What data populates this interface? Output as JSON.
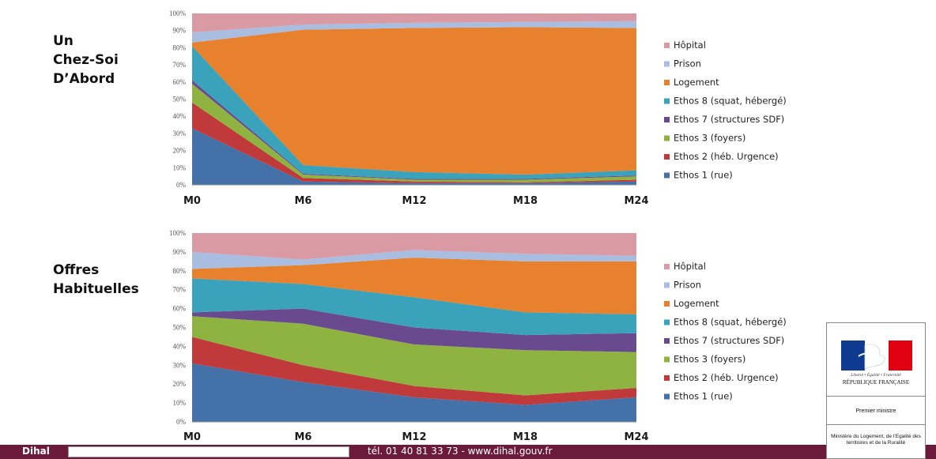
{
  "chart_data": [
    {
      "type": "area",
      "stacked": true,
      "percent": true,
      "title": "Un\nChez-Soi\nD’Abord",
      "categories": [
        "M0",
        "M6",
        "M12",
        "M18",
        "M24"
      ],
      "yticks": [
        "0%",
        "10%",
        "20%",
        "30%",
        "40%",
        "50%",
        "60%",
        "70%",
        "80%",
        "90%",
        "100%"
      ],
      "ylim": [
        0,
        100
      ],
      "legend_position": "right",
      "series": [
        {
          "name": "Ethos 1 (rue)",
          "color": "#4472a8",
          "values": [
            33,
            2,
            1,
            1,
            2
          ]
        },
        {
          "name": "Ethos 2 (héb. Urgence)",
          "color": "#c0393b",
          "values": [
            15,
            2,
            1,
            0.5,
            1
          ]
        },
        {
          "name": "Ethos 3 (foyers)",
          "color": "#8fb341",
          "values": [
            11,
            2,
            1,
            1.5,
            2
          ]
        },
        {
          "name": "Ethos 7 (structures SDF)",
          "color": "#6a4a8f",
          "values": [
            2,
            0.5,
            0.5,
            0.5,
            0.5
          ]
        },
        {
          "name": "Ethos 8 (squat, hébergé)",
          "color": "#3aa2bb",
          "values": [
            20,
            5,
            4,
            2.5,
            3
          ]
        },
        {
          "name": "Logement",
          "color": "#e8812e",
          "values": [
            2,
            79,
            84,
            86,
            83
          ]
        },
        {
          "name": "Prison",
          "color": "#a9bde0",
          "values": [
            6,
            3,
            3,
            3,
            4
          ]
        },
        {
          "name": "Hôpital",
          "color": "#d99aa3",
          "values": [
            11,
            6.5,
            5.5,
            5,
            4.5
          ]
        }
      ]
    },
    {
      "type": "area",
      "stacked": true,
      "percent": true,
      "title": "Offres\nHabituelles",
      "categories": [
        "M0",
        "M6",
        "M12",
        "M18",
        "M24"
      ],
      "yticks": [
        "0%",
        "10%",
        "20%",
        "30%",
        "40%",
        "50%",
        "60%",
        "70%",
        "80%",
        "90%",
        "100%"
      ],
      "ylim": [
        0,
        100
      ],
      "legend_position": "right",
      "series": [
        {
          "name": "Ethos 1 (rue)",
          "color": "#4472a8",
          "values": [
            31,
            21,
            13,
            9,
            13
          ]
        },
        {
          "name": "Ethos 2 (héb. Urgence)",
          "color": "#c0393b",
          "values": [
            14,
            9,
            6,
            5,
            5
          ]
        },
        {
          "name": "Ethos 3 (foyers)",
          "color": "#8fb341",
          "values": [
            11,
            22,
            22,
            24,
            19
          ]
        },
        {
          "name": "Ethos 7 (structures SDF)",
          "color": "#6a4a8f",
          "values": [
            2,
            8,
            9,
            8,
            10
          ]
        },
        {
          "name": "Ethos 8 (squat, hébergé)",
          "color": "#3aa2bb",
          "values": [
            18,
            13,
            16,
            12,
            10
          ]
        },
        {
          "name": "Logement",
          "color": "#e8812e",
          "values": [
            5,
            10,
            21,
            27,
            28
          ]
        },
        {
          "name": "Prison",
          "color": "#a9bde0",
          "values": [
            9,
            3,
            4,
            4,
            3
          ]
        },
        {
          "name": "Hôpital",
          "color": "#d99aa3",
          "values": [
            10,
            14,
            9,
            11,
            12
          ]
        }
      ]
    }
  ],
  "footer": {
    "brand": "Dihal",
    "box_text": "",
    "contact": "tél. 01 40 81 33 73 - www.dihal.gouv.fr"
  },
  "ministry_logo": {
    "motto": "Liberté • Égalité • Fraternité",
    "republic": "RÉPUBLIQUE FRANÇAISE",
    "office": "Premier ministre",
    "ministry": "Ministère du Logement, de l’Egalité des territoires et de la Ruralité",
    "colors": {
      "blue": "#0e3b8f",
      "red": "#e1000f"
    }
  }
}
